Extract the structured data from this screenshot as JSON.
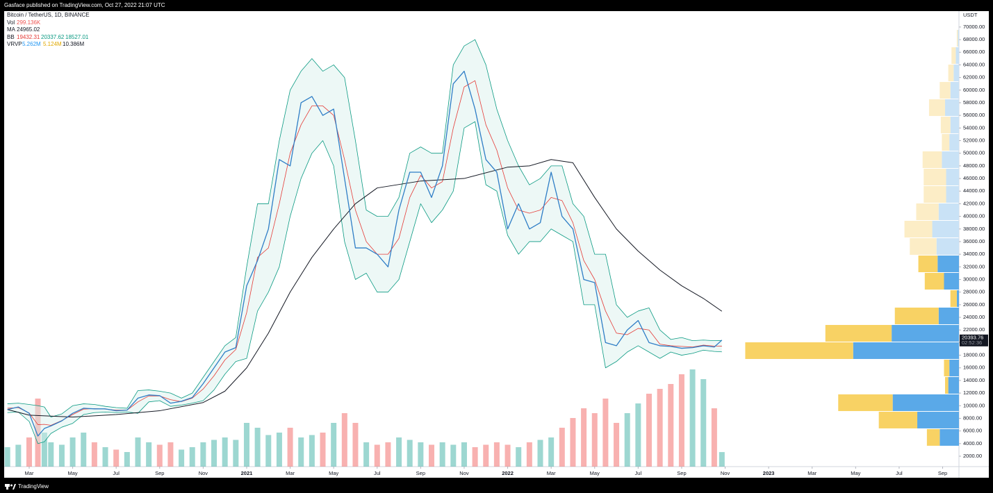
{
  "header": {
    "publisher": "Gasface published on TradingView.com, Oct 27, 2022 21:07 UTC"
  },
  "footer": {
    "brand": "TradingView"
  },
  "chart_data": {
    "type": "line",
    "title": "Bitcoin / TetherUS, 1D, BINANCE",
    "y_axis_label": "USDT",
    "countdown": "02:52:36",
    "x": [
      1,
      1.5,
      2,
      2.4,
      2.7,
      3,
      3.5,
      4,
      4.5,
      5,
      5.5,
      6,
      6.5,
      7,
      7.5,
      8,
      8.5,
      9,
      9.5,
      10,
      10.5,
      11,
      11.5,
      12,
      12.5,
      13,
      13.5,
      14,
      14.5,
      15,
      15.5,
      16,
      16.5,
      17,
      17.5,
      18,
      18.5,
      19,
      19.5,
      20,
      20.5,
      21,
      21.5,
      22,
      22.5,
      23,
      23.5,
      24,
      24.5,
      25,
      25.5,
      26,
      26.5,
      27,
      27.5,
      28,
      28.5,
      29,
      29.5,
      30,
      30.5,
      31,
      31.5,
      32,
      32.5,
      33,
      33.5,
      33.85
    ],
    "xlim": [
      0.85,
      44.75
    ],
    "xticks": [
      {
        "value": 2,
        "label": "Mar"
      },
      {
        "value": 4,
        "label": "May"
      },
      {
        "value": 6,
        "label": "Jul"
      },
      {
        "value": 8,
        "label": "Sep"
      },
      {
        "value": 10,
        "label": "Nov"
      },
      {
        "value": 12,
        "label": "2021"
      },
      {
        "value": 14,
        "label": "Mar"
      },
      {
        "value": 16,
        "label": "May"
      },
      {
        "value": 18,
        "label": "Jul"
      },
      {
        "value": 20,
        "label": "Sep"
      },
      {
        "value": 22,
        "label": "Nov"
      },
      {
        "value": 24,
        "label": "2022"
      },
      {
        "value": 26,
        "label": "Mar"
      },
      {
        "value": 28,
        "label": "May"
      },
      {
        "value": 30,
        "label": "Jul"
      },
      {
        "value": 32,
        "label": "Sep"
      },
      {
        "value": 34,
        "label": "Nov"
      },
      {
        "value": 36,
        "label": "2023"
      },
      {
        "value": 38,
        "label": "Mar"
      },
      {
        "value": 40,
        "label": "May"
      },
      {
        "value": 42,
        "label": "Jul"
      },
      {
        "value": 44,
        "label": "Sep"
      }
    ],
    "ylim": [
      350,
      72520
    ],
    "yticks": [
      {
        "value": 2000,
        "label": "2000.00"
      },
      {
        "value": 4000,
        "label": "4000.00"
      },
      {
        "value": 6000,
        "label": "6000.00"
      },
      {
        "value": 8000,
        "label": "8000.00"
      },
      {
        "value": 10000,
        "label": "10000.00"
      },
      {
        "value": 12000,
        "label": "12000.00"
      },
      {
        "value": 14000,
        "label": "14000.00"
      },
      {
        "value": 16000,
        "label": "16000.00"
      },
      {
        "value": 18000,
        "label": "18000.00"
      },
      {
        "value": 20000,
        "label": "20000.00"
      },
      {
        "value": 22000,
        "label": "22000.00"
      },
      {
        "value": 24000,
        "label": "24000.00"
      },
      {
        "value": 26000,
        "label": "26000.00"
      },
      {
        "value": 28000,
        "label": "28000.00"
      },
      {
        "value": 30000,
        "label": "30000.00"
      },
      {
        "value": 32000,
        "label": "32000.00"
      },
      {
        "value": 34000,
        "label": "34000.00"
      },
      {
        "value": 36000,
        "label": "36000.00"
      },
      {
        "value": 38000,
        "label": "38000.00"
      },
      {
        "value": 40000,
        "label": "40000.00"
      },
      {
        "value": 42000,
        "label": "42000.00"
      },
      {
        "value": 44000,
        "label": "44000.00"
      },
      {
        "value": 46000,
        "label": "46000.00"
      },
      {
        "value": 48000,
        "label": "48000.00"
      },
      {
        "value": 50000,
        "label": "50000.00"
      },
      {
        "value": 52000,
        "label": "52000.00"
      },
      {
        "value": 54000,
        "label": "54000.00"
      },
      {
        "value": 56000,
        "label": "56000.00"
      },
      {
        "value": 58000,
        "label": "58000.00"
      },
      {
        "value": 60000,
        "label": "60000.00"
      },
      {
        "value": 62000,
        "label": "62000.00"
      },
      {
        "value": 64000,
        "label": "64000.00"
      },
      {
        "value": 66000,
        "label": "66000.00"
      },
      {
        "value": 68000,
        "label": "68000.00"
      },
      {
        "value": 70000,
        "label": "70000.00"
      }
    ],
    "price": {
      "color": "#2e7dc6",
      "values": [
        9400,
        9800,
        8800,
        5200,
        6400,
        6800,
        7600,
        8800,
        9600,
        9500,
        9500,
        9200,
        9300,
        11200,
        11700,
        11600,
        10400,
        10700,
        11300,
        13500,
        16000,
        18500,
        19200,
        29000,
        33000,
        38000,
        49000,
        48000,
        58000,
        59000,
        56000,
        57000,
        46000,
        35000,
        35000,
        34000,
        32000,
        41000,
        47000,
        47000,
        43000,
        48000,
        61000,
        63000,
        57000,
        49000,
        47000,
        38000,
        42000,
        38000,
        39000,
        47000,
        40000,
        38000,
        30000,
        29500,
        20000,
        19500,
        22000,
        23500,
        20000,
        19500,
        19400,
        19100,
        19200,
        19500,
        19300,
        20393.76
      ]
    },
    "volume": {
      "name": "Vol",
      "last_label": "299.136K",
      "up_color": "#26a69a",
      "down_color": "#ef5350",
      "ylim": [
        0,
        3000
      ],
      "values": [
        400,
        450,
        600,
        1400,
        700,
        500,
        450,
        600,
        700,
        500,
        400,
        350,
        300,
        600,
        500,
        450,
        500,
        350,
        400,
        500,
        550,
        600,
        550,
        900,
        800,
        650,
        700,
        800,
        600,
        650,
        700,
        900,
        1100,
        900,
        500,
        450,
        500,
        600,
        550,
        500,
        450,
        500,
        450,
        500,
        400,
        450,
        500,
        450,
        400,
        500,
        550,
        600,
        800,
        1000,
        1200,
        1100,
        1400,
        900,
        1100,
        1300,
        1500,
        1600,
        1700,
        1900,
        2000,
        1800,
        1200,
        299.136
      ]
    },
    "ma": {
      "name": "MA",
      "color": "#131722",
      "x": [
        1,
        2,
        4,
        6,
        8,
        10,
        11,
        12,
        13,
        14,
        15,
        16,
        17,
        18,
        20,
        22,
        24,
        25,
        26,
        27,
        28,
        29,
        30,
        31,
        32,
        33,
        33.85
      ],
      "values": [
        9400,
        8500,
        8200,
        8600,
        9200,
        10500,
        12300,
        16000,
        21500,
        28000,
        33500,
        38000,
        42000,
        44500,
        45600,
        46000,
        47800,
        48000,
        49000,
        48500,
        43000,
        38000,
        34500,
        31500,
        29000,
        27000,
        24965.02
      ]
    },
    "bb": {
      "name": "BB",
      "basis_color": "#e53935",
      "band_color": "#089981",
      "fill": "#d6efeb",
      "basis": [
        9600,
        9700,
        8850,
        7000,
        7050,
        6900,
        7650,
        8600,
        9450,
        9550,
        9450,
        9300,
        9300,
        10600,
        11550,
        11550,
        10950,
        10650,
        11200,
        12650,
        14750,
        17250,
        18900,
        24750,
        33500,
        35000,
        42000,
        50000,
        54500,
        57500,
        57500,
        56000,
        49000,
        41000,
        36000,
        34000,
        34000,
        36500,
        43000,
        46500,
        44500,
        45500,
        54000,
        60500,
        61500,
        54500,
        50500,
        44500,
        41000,
        40500,
        41000,
        43000,
        42500,
        39000,
        33000,
        30000,
        25000,
        21500,
        21250,
        22250,
        22000,
        19750,
        19500,
        19400,
        19300,
        19600,
        19450,
        19432.31
      ],
      "upper": [
        10300,
        10400,
        10200,
        10000,
        9800,
        8200,
        8700,
        10000,
        10300,
        10200,
        9900,
        9700,
        9600,
        12400,
        12500,
        12300,
        12000,
        11200,
        12000,
        14500,
        17000,
        19500,
        20800,
        32000,
        42000,
        42000,
        52000,
        60000,
        63000,
        65000,
        63000,
        64000,
        62000,
        52000,
        41000,
        40000,
        40000,
        43000,
        50000,
        51000,
        50000,
        50000,
        64000,
        67000,
        68000,
        64000,
        57000,
        52000,
        48000,
        45000,
        46000,
        48000,
        48000,
        42000,
        40000,
        34000,
        34000,
        26000,
        24000,
        25000,
        25500,
        22000,
        20500,
        20800,
        20300,
        20400,
        20300,
        20337.62
      ],
      "lower": [
        8900,
        9000,
        7500,
        4000,
        4300,
        5600,
        6600,
        7200,
        8600,
        8900,
        9000,
        8900,
        9000,
        8800,
        10600,
        10800,
        9900,
        10100,
        10400,
        10800,
        12500,
        15000,
        17000,
        17500,
        25000,
        28000,
        32000,
        40000,
        46000,
        50000,
        52000,
        48000,
        36000,
        30000,
        31000,
        28000,
        28000,
        30000,
        36000,
        42000,
        39000,
        41000,
        44000,
        54000,
        55000,
        45000,
        44000,
        37000,
        34000,
        36000,
        36000,
        38000,
        37000,
        36000,
        26000,
        26000,
        16000,
        17000,
        18500,
        19500,
        18500,
        17500,
        18500,
        18000,
        18300,
        18800,
        18600,
        18527.01
      ]
    },
    "profile": {
      "name": "VRVP",
      "legend_labels": [
        "5.262M",
        "5.124M",
        "10.386M"
      ],
      "up_color": "#5aa9e8",
      "down_color": "#f8d264",
      "up_color_outside": "#c9e2f6",
      "down_color_outside": "#fcedc6",
      "value_area": [
        3600,
        33850
      ],
      "xlim": [
        0,
        2.25
      ],
      "bins": [
        3600,
        6350,
        9100,
        11850,
        14600,
        17350,
        20100,
        22850,
        25600,
        28350,
        31100,
        33850,
        36600,
        39350,
        42100,
        44850,
        47600,
        50350,
        53100,
        55850,
        58600,
        61350,
        64100,
        66850,
        69600
      ],
      "up": [
        0.18,
        0.39,
        0.62,
        0.1,
        0.09,
        0.99,
        0.63,
        0.19,
        0.02,
        0.14,
        0.2,
        0.21,
        0.25,
        0.19,
        0.12,
        0.12,
        0.16,
        0.09,
        0.08,
        0.13,
        0.08,
        0.05,
        0.03,
        0.01
      ],
      "down": [
        0.12,
        0.36,
        0.51,
        0.03,
        0.05,
        1.01,
        0.62,
        0.41,
        0.06,
        0.18,
        0.18,
        0.25,
        0.26,
        0.21,
        0.21,
        0.21,
        0.18,
        0.07,
        0.09,
        0.15,
        0.1,
        0.05,
        0.04,
        0.01
      ]
    }
  }
}
